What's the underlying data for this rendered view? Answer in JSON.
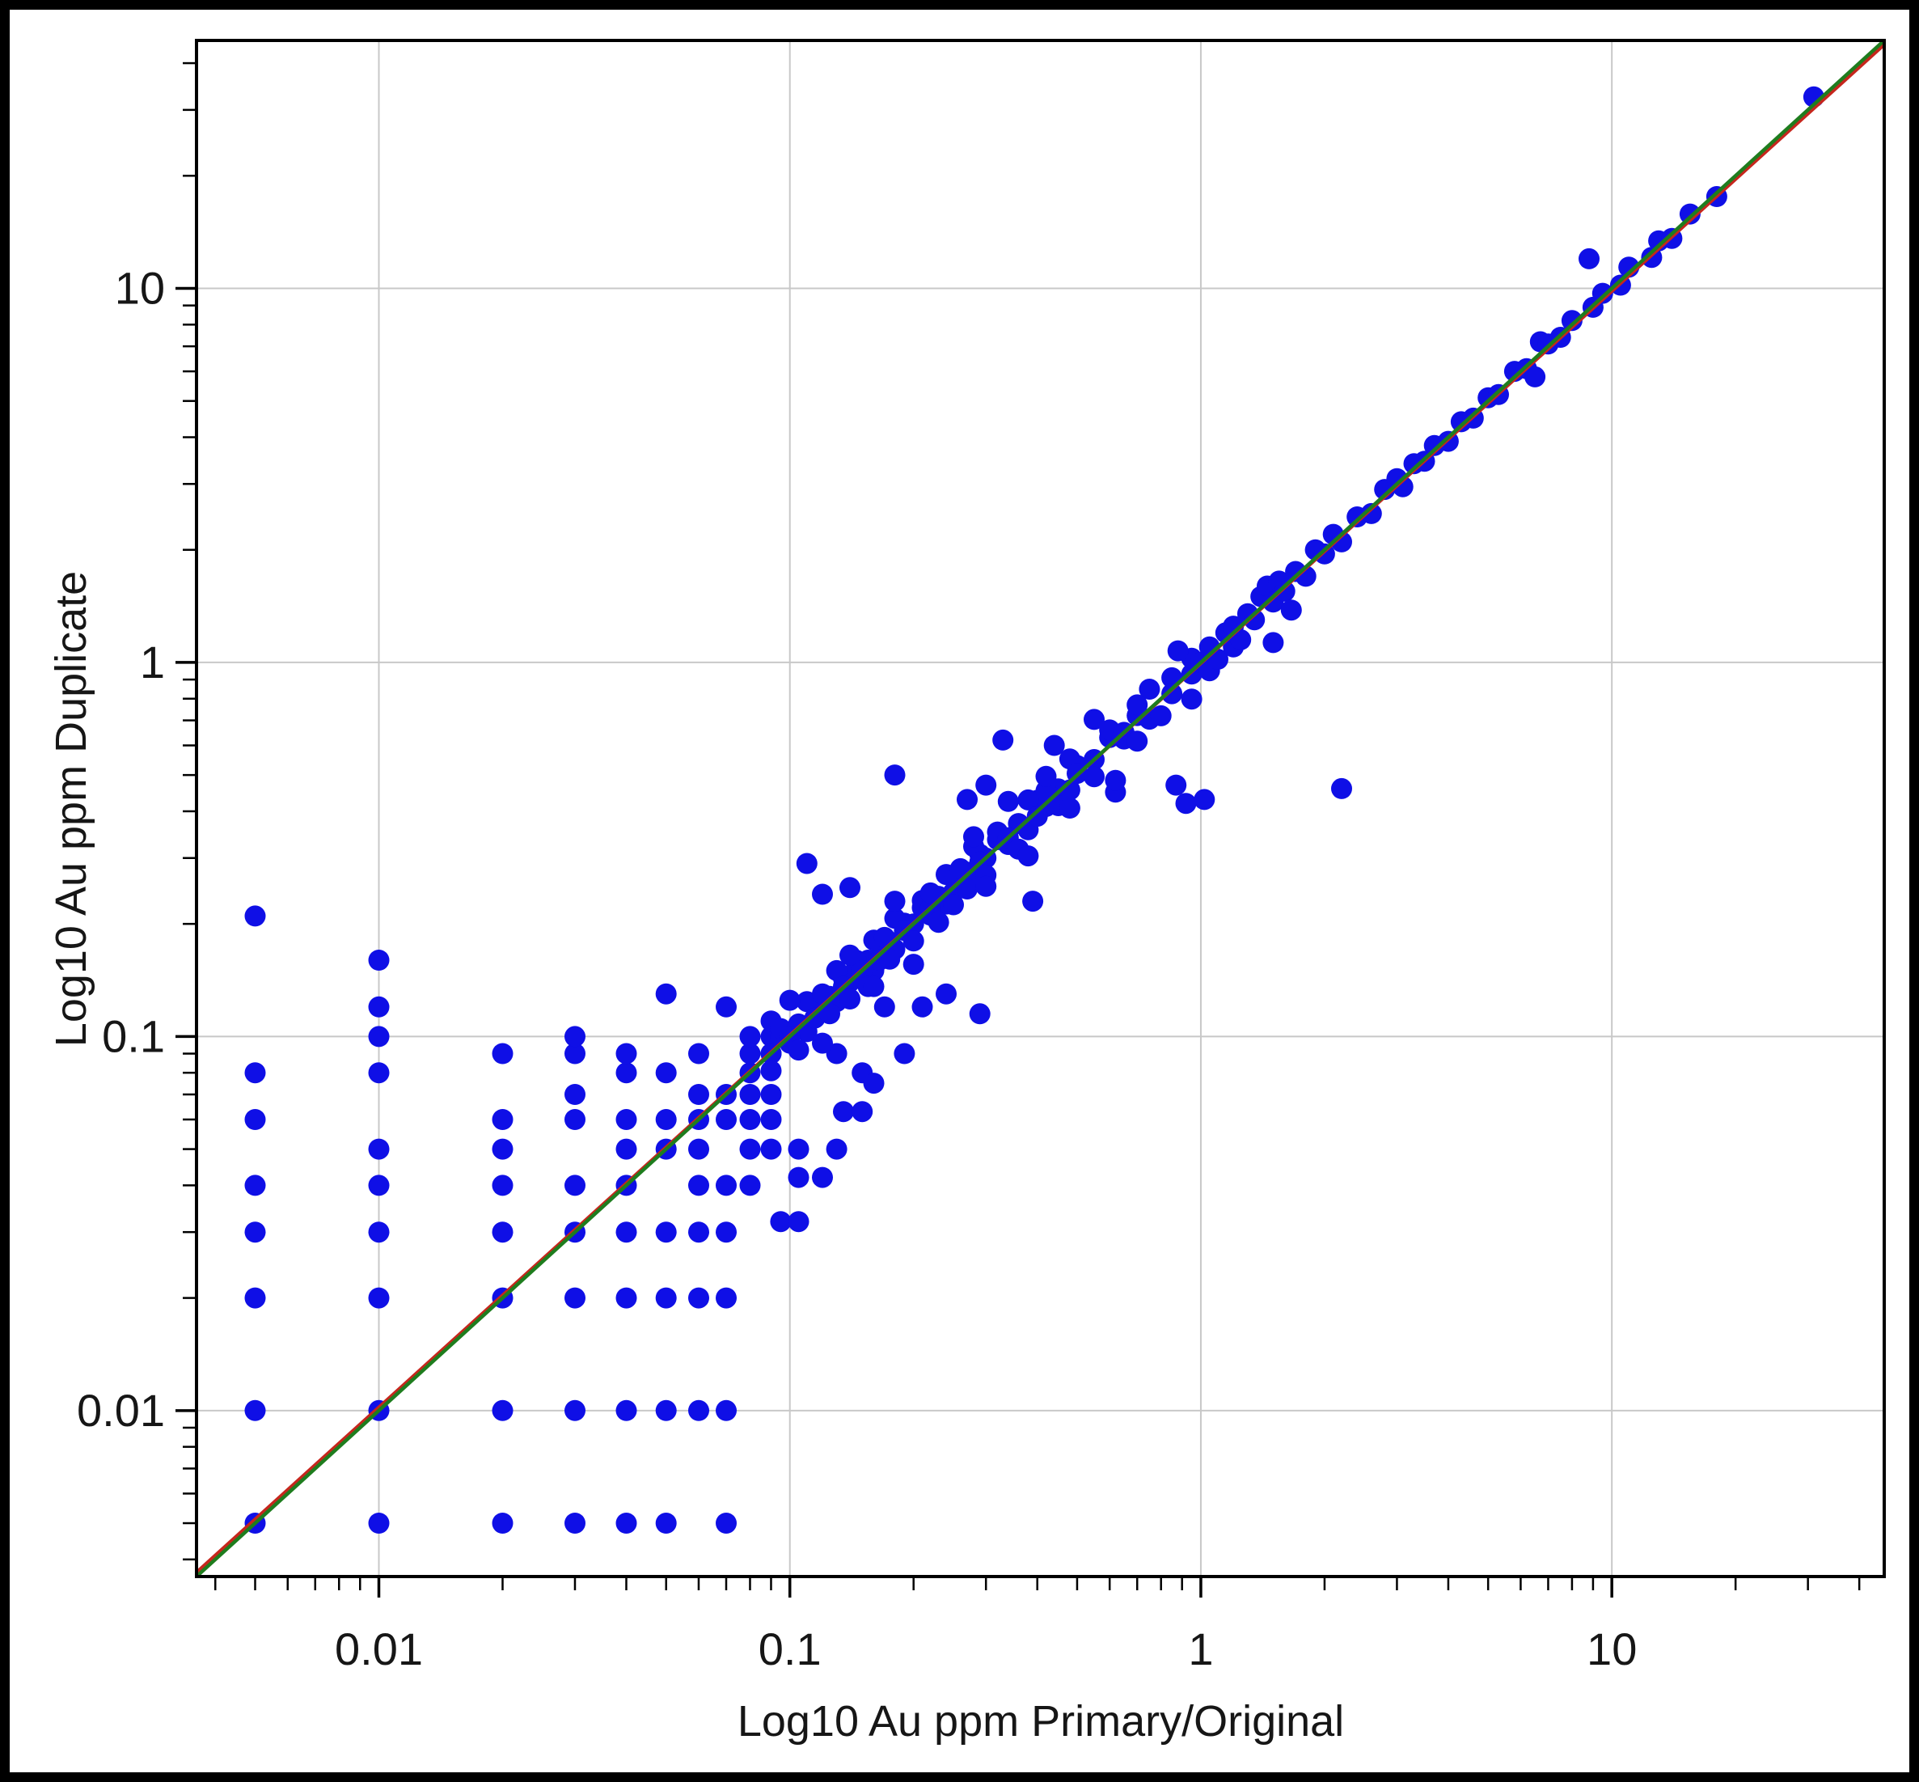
{
  "chart_data": {
    "type": "scatter",
    "title": "",
    "xlabel": "Log10 Au ppm Primary/Original",
    "ylabel": "Log10 Au ppm Duplicate",
    "x_scale": "log",
    "y_scale": "log",
    "xlim": [
      0.0036,
      46
    ],
    "ylim": [
      0.0036,
      46
    ],
    "x_tick_values": [
      0.01,
      0.1,
      1,
      10
    ],
    "x_tick_labels": [
      "0.01",
      "0.1",
      "1",
      "10"
    ],
    "y_tick_values": [
      10,
      1,
      0.1,
      0.01
    ],
    "y_tick_labels": [
      "10",
      "1",
      "0.1",
      "0.01"
    ],
    "grid": "major-decades-on",
    "legend": "none",
    "colors": {
      "marker": "#0f0fe6",
      "grid": "#c8c8c8",
      "axis": "#000000",
      "identity_line_red": "#c6261d",
      "trend_line_green": "#1e7d1e",
      "background": "#ffffff",
      "text": "#161616"
    },
    "marker": {
      "shape": "circle",
      "radius_px": 13
    },
    "lines": [
      {
        "name": "identity-line",
        "color": "#c6261d",
        "note": "1:1 line, red, visible above green at lower-left"
      },
      {
        "name": "trend-line",
        "color": "#1e7d1e",
        "note": "regression line, dark green, visible above red at upper-right"
      }
    ],
    "points": [
      [
        0.005,
        0.005
      ],
      [
        0.005,
        0.01
      ],
      [
        0.005,
        0.02
      ],
      [
        0.005,
        0.03
      ],
      [
        0.005,
        0.04
      ],
      [
        0.005,
        0.06
      ],
      [
        0.005,
        0.08
      ],
      [
        0.005,
        0.21
      ],
      [
        0.01,
        0.005
      ],
      [
        0.01,
        0.01
      ],
      [
        0.01,
        0.02
      ],
      [
        0.01,
        0.03
      ],
      [
        0.01,
        0.04
      ],
      [
        0.01,
        0.05
      ],
      [
        0.01,
        0.08
      ],
      [
        0.01,
        0.1
      ],
      [
        0.01,
        0.12
      ],
      [
        0.01,
        0.16
      ],
      [
        0.02,
        0.005
      ],
      [
        0.02,
        0.01
      ],
      [
        0.02,
        0.02
      ],
      [
        0.02,
        0.03
      ],
      [
        0.02,
        0.04
      ],
      [
        0.02,
        0.05
      ],
      [
        0.02,
        0.06
      ],
      [
        0.02,
        0.09
      ],
      [
        0.03,
        0.005
      ],
      [
        0.03,
        0.01
      ],
      [
        0.03,
        0.02
      ],
      [
        0.03,
        0.03
      ],
      [
        0.03,
        0.04
      ],
      [
        0.03,
        0.06
      ],
      [
        0.03,
        0.07
      ],
      [
        0.03,
        0.09
      ],
      [
        0.03,
        0.1
      ],
      [
        0.04,
        0.005
      ],
      [
        0.04,
        0.01
      ],
      [
        0.04,
        0.02
      ],
      [
        0.04,
        0.03
      ],
      [
        0.04,
        0.04
      ],
      [
        0.04,
        0.05
      ],
      [
        0.04,
        0.06
      ],
      [
        0.04,
        0.08
      ],
      [
        0.04,
        0.09
      ],
      [
        0.05,
        0.005
      ],
      [
        0.05,
        0.01
      ],
      [
        0.05,
        0.02
      ],
      [
        0.05,
        0.03
      ],
      [
        0.05,
        0.05
      ],
      [
        0.05,
        0.06
      ],
      [
        0.05,
        0.08
      ],
      [
        0.05,
        0.13
      ],
      [
        0.06,
        0.01
      ],
      [
        0.06,
        0.02
      ],
      [
        0.06,
        0.03
      ],
      [
        0.06,
        0.04
      ],
      [
        0.06,
        0.05
      ],
      [
        0.06,
        0.06
      ],
      [
        0.06,
        0.07
      ],
      [
        0.06,
        0.09
      ],
      [
        0.07,
        0.005
      ],
      [
        0.07,
        0.01
      ],
      [
        0.07,
        0.02
      ],
      [
        0.07,
        0.03
      ],
      [
        0.07,
        0.04
      ],
      [
        0.07,
        0.06
      ],
      [
        0.07,
        0.07
      ],
      [
        0.07,
        0.12
      ],
      [
        0.08,
        0.04
      ],
      [
        0.08,
        0.05
      ],
      [
        0.08,
        0.06
      ],
      [
        0.08,
        0.07
      ],
      [
        0.08,
        0.08
      ],
      [
        0.08,
        0.09
      ],
      [
        0.08,
        0.1
      ],
      [
        0.09,
        0.05
      ],
      [
        0.09,
        0.06
      ],
      [
        0.09,
        0.07
      ],
      [
        0.09,
        0.09
      ],
      [
        0.09,
        0.1
      ],
      [
        0.09,
        0.11
      ],
      [
        0.095,
        0.032
      ],
      [
        0.105,
        0.032
      ],
      [
        0.105,
        0.042
      ],
      [
        0.12,
        0.042
      ],
      [
        0.105,
        0.05
      ],
      [
        0.13,
        0.05
      ],
      [
        0.135,
        0.063
      ],
      [
        0.15,
        0.063
      ],
      [
        0.13,
        0.09
      ],
      [
        0.15,
        0.08
      ],
      [
        0.16,
        0.075
      ],
      [
        0.19,
        0.09
      ],
      [
        0.17,
        0.12
      ],
      [
        0.21,
        0.12
      ],
      [
        0.24,
        0.13
      ],
      [
        0.29,
        0.115
      ],
      [
        0.39,
        0.23
      ],
      [
        0.11,
        0.29
      ],
      [
        0.12,
        0.24
      ],
      [
        0.14,
        0.25
      ],
      [
        0.18,
        0.5
      ],
      [
        0.27,
        0.43
      ],
      [
        0.33,
        0.62
      ],
      [
        0.44,
        0.6
      ],
      [
        0.3,
        0.47
      ],
      [
        0.62,
        0.45
      ],
      [
        0.87,
        0.47
      ],
      [
        0.92,
        0.42
      ],
      [
        1.02,
        0.43
      ],
      [
        2.2,
        0.46
      ],
      [
        0.09,
        0.09
      ],
      [
        0.095,
        0.1
      ],
      [
        0.1,
        0.096
      ],
      [
        0.105,
        0.108
      ],
      [
        0.11,
        0.103
      ],
      [
        0.115,
        0.123
      ],
      [
        0.12,
        0.118
      ],
      [
        0.125,
        0.128
      ],
      [
        0.13,
        0.124
      ],
      [
        0.135,
        0.143
      ],
      [
        0.14,
        0.14
      ],
      [
        0.145,
        0.152
      ],
      [
        0.15,
        0.144
      ],
      [
        0.155,
        0.16
      ],
      [
        0.16,
        0.15
      ],
      [
        0.165,
        0.177
      ],
      [
        0.17,
        0.167
      ],
      [
        0.175,
        0.179
      ],
      [
        0.18,
        0.171
      ],
      [
        0.19,
        0.201
      ],
      [
        0.2,
        0.2
      ],
      [
        0.21,
        0.221
      ],
      [
        0.22,
        0.211
      ],
      [
        0.23,
        0.237
      ],
      [
        0.24,
        0.226
      ],
      [
        0.25,
        0.268
      ],
      [
        0.26,
        0.255
      ],
      [
        0.27,
        0.275
      ],
      [
        0.28,
        0.266
      ],
      [
        0.29,
        0.307
      ],
      [
        0.3,
        0.3
      ],
      [
        0.32,
        0.336
      ],
      [
        0.34,
        0.326
      ],
      [
        0.36,
        0.371
      ],
      [
        0.38,
        0.357
      ],
      [
        0.4,
        0.428
      ],
      [
        0.42,
        0.412
      ],
      [
        0.45,
        0.459
      ],
      [
        0.48,
        0.456
      ],
      [
        0.5,
        0.53
      ],
      [
        0.55,
        0.55
      ],
      [
        0.6,
        0.63
      ],
      [
        0.65,
        0.624
      ],
      [
        0.7,
        0.721
      ],
      [
        0.75,
        0.705
      ],
      [
        0.85,
        0.91
      ],
      [
        0.95,
        0.931
      ],
      [
        0.09,
        0.081
      ],
      [
        0.095,
        0.105
      ],
      [
        0.1,
        0.1
      ],
      [
        0.105,
        0.092
      ],
      [
        0.11,
        0.124
      ],
      [
        0.115,
        0.112
      ],
      [
        0.12,
        0.13
      ],
      [
        0.125,
        0.115
      ],
      [
        0.13,
        0.15
      ],
      [
        0.135,
        0.136
      ],
      [
        0.14,
        0.126
      ],
      [
        0.145,
        0.16
      ],
      [
        0.15,
        0.15
      ],
      [
        0.155,
        0.136
      ],
      [
        0.16,
        0.181
      ],
      [
        0.165,
        0.16
      ],
      [
        0.17,
        0.184
      ],
      [
        0.175,
        0.161
      ],
      [
        0.18,
        0.207
      ],
      [
        0.19,
        0.192
      ],
      [
        0.2,
        0.18
      ],
      [
        0.21,
        0.231
      ],
      [
        0.22,
        0.22
      ],
      [
        0.23,
        0.202
      ],
      [
        0.24,
        0.271
      ],
      [
        0.25,
        0.243
      ],
      [
        0.26,
        0.281
      ],
      [
        0.27,
        0.248
      ],
      [
        0.28,
        0.322
      ],
      [
        0.29,
        0.293
      ],
      [
        0.3,
        0.27
      ],
      [
        0.32,
        0.352
      ],
      [
        0.34,
        0.34
      ],
      [
        0.36,
        0.317
      ],
      [
        0.38,
        0.429
      ],
      [
        0.4,
        0.388
      ],
      [
        0.42,
        0.454
      ],
      [
        0.45,
        0.414
      ],
      [
        0.48,
        0.552
      ],
      [
        0.5,
        0.505
      ],
      [
        0.55,
        0.495
      ],
      [
        0.6,
        0.66
      ],
      [
        0.65,
        0.65
      ],
      [
        0.7,
        0.616
      ],
      [
        0.75,
        0.848
      ],
      [
        0.85,
        0.825
      ],
      [
        0.95,
        1.026
      ],
      [
        0.1,
        0.125
      ],
      [
        0.12,
        0.096
      ],
      [
        0.14,
        0.165
      ],
      [
        0.16,
        0.136
      ],
      [
        0.18,
        0.23
      ],
      [
        0.2,
        0.156
      ],
      [
        0.22,
        0.242
      ],
      [
        0.25,
        0.225
      ],
      [
        0.28,
        0.342
      ],
      [
        0.3,
        0.252
      ],
      [
        0.34,
        0.425
      ],
      [
        0.38,
        0.304
      ],
      [
        0.42,
        0.496
      ],
      [
        0.48,
        0.408
      ],
      [
        0.55,
        0.704
      ],
      [
        0.62,
        0.484
      ],
      [
        0.7,
        0.77
      ],
      [
        0.8,
        0.72
      ],
      [
        0.88,
        1.074
      ],
      [
        0.95,
        0.798
      ],
      [
        1.0,
        1.0
      ],
      [
        1.05,
        1.1
      ],
      [
        1.05,
        0.95
      ],
      [
        1.1,
        1.02
      ],
      [
        1.15,
        1.2
      ],
      [
        1.2,
        1.25
      ],
      [
        1.2,
        1.1
      ],
      [
        1.25,
        1.15
      ],
      [
        1.3,
        1.35
      ],
      [
        1.35,
        1.3
      ],
      [
        1.4,
        1.5
      ],
      [
        1.45,
        1.6
      ],
      [
        1.5,
        1.45
      ],
      [
        1.5,
        1.13
      ],
      [
        1.55,
        1.65
      ],
      [
        1.6,
        1.55
      ],
      [
        1.66,
        1.38
      ],
      [
        1.7,
        1.75
      ],
      [
        1.8,
        1.7
      ],
      [
        1.9,
        2.0
      ],
      [
        2.0,
        1.95
      ],
      [
        2.1,
        2.2
      ],
      [
        2.2,
        2.1
      ],
      [
        2.4,
        2.45
      ],
      [
        2.6,
        2.5
      ],
      [
        2.8,
        2.9
      ],
      [
        3.0,
        3.1
      ],
      [
        3.1,
        2.95
      ],
      [
        3.3,
        3.4
      ],
      [
        3.5,
        3.45
      ],
      [
        3.7,
        3.8
      ],
      [
        4.0,
        3.9
      ],
      [
        4.3,
        4.4
      ],
      [
        4.6,
        4.5
      ],
      [
        5.0,
        5.1
      ],
      [
        5.3,
        5.2
      ],
      [
        5.8,
        6.0
      ],
      [
        6.2,
        6.1
      ],
      [
        6.5,
        5.8
      ],
      [
        6.7,
        7.2
      ],
      [
        7.0,
        7.1
      ],
      [
        7.5,
        7.4
      ],
      [
        8.0,
        8.2
      ],
      [
        8.8,
        12.0
      ],
      [
        9.0,
        8.9
      ],
      [
        9.5,
        9.7
      ],
      [
        10.5,
        10.2
      ],
      [
        11,
        11.4
      ],
      [
        12.5,
        12.1
      ],
      [
        13,
        13.4
      ],
      [
        14,
        13.6
      ],
      [
        15.5,
        15.8
      ],
      [
        18,
        17.6
      ],
      [
        31,
        32.5
      ]
    ]
  }
}
